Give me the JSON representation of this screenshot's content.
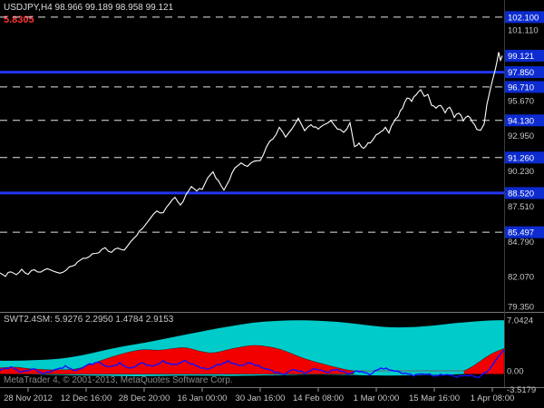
{
  "header": {
    "symbol_line": "USDJPY,H4 98.966 99.189 98.958 99.121",
    "red_value": "5.8305",
    "watermark": "MetaTrader 4, © 2001-2013, MetaQuotes Software Corp."
  },
  "colors": {
    "background": "#000000",
    "price_line": "#FFFFFF",
    "level_blue": "#2236F0",
    "label_bg_blue": "#0C2BD0",
    "dashed_line": "#E6E6E6",
    "axis_text": "#C6C6C6",
    "band_cyan": "#00CBCB",
    "area_red": "#F20000",
    "indicator_blue": "#0F0FFF",
    "red_text": "#FF3030",
    "header_text": "#DCDCDC",
    "subwindow_text": "#C8C8C8",
    "watermark_text": "#8A8A8A",
    "separator": "#787878"
  },
  "chart_data": {
    "type": "line",
    "title": "USDJPY,H4",
    "symbol": "USDJPY",
    "timeframe": "H4",
    "ohlc": {
      "open": 98.966,
      "high": 99.189,
      "low": 98.958,
      "close": 99.121
    },
    "price_pane": {
      "y_range": [
        79.35,
        103.0
      ],
      "current_price": 99.121,
      "grid": false,
      "axis_ticks": [
        {
          "label": "102.100",
          "price": 102.1,
          "highlighted": true
        },
        {
          "label": "101.110",
          "price": 101.11,
          "highlighted": false
        },
        {
          "label": "99.121",
          "price": 99.121,
          "highlighted": true,
          "current": true
        },
        {
          "label": "97.850",
          "price": 97.85,
          "highlighted": true
        },
        {
          "label": "96.710",
          "price": 96.71,
          "highlighted": true
        },
        {
          "label": "95.670",
          "price": 95.67,
          "highlighted": false
        },
        {
          "label": "94.130",
          "price": 94.13,
          "highlighted": true
        },
        {
          "label": "92.950",
          "price": 92.95,
          "highlighted": false
        },
        {
          "label": "91.260",
          "price": 91.26,
          "highlighted": true
        },
        {
          "label": "90.230",
          "price": 90.23,
          "highlighted": false
        },
        {
          "label": "88.520",
          "price": 88.52,
          "highlighted": true
        },
        {
          "label": "87.510",
          "price": 87.51,
          "highlighted": false
        },
        {
          "label": "85.497",
          "price": 85.497,
          "highlighted": true
        },
        {
          "label": "84.790",
          "price": 84.79,
          "highlighted": false
        },
        {
          "label": "82.070",
          "price": 82.07,
          "highlighted": false
        },
        {
          "label": "79.350",
          "price": 79.35,
          "highlighted": false
        }
      ],
      "hlines": [
        {
          "price": 102.1,
          "style": "dashed"
        },
        {
          "price": 97.85,
          "style": "solid"
        },
        {
          "price": 96.71,
          "style": "dashed"
        },
        {
          "price": 94.13,
          "style": "dashed"
        },
        {
          "price": 91.26,
          "style": "dashed"
        },
        {
          "price": 88.52,
          "style": "solid"
        },
        {
          "price": 85.497,
          "style": "dashed"
        }
      ],
      "series": [
        [
          0,
          82.35
        ],
        [
          6,
          82.15
        ],
        [
          12,
          82.45
        ],
        [
          18,
          82.25
        ],
        [
          24,
          82.55
        ],
        [
          31,
          82.3
        ],
        [
          38,
          82.6
        ],
        [
          45,
          82.4
        ],
        [
          52,
          82.7
        ],
        [
          59,
          82.5
        ],
        [
          66,
          82.3
        ],
        [
          73,
          82.6
        ],
        [
          80,
          82.9
        ],
        [
          88,
          83.3
        ],
        [
          95,
          83.55
        ],
        [
          102,
          83.75
        ],
        [
          109,
          84.0
        ],
        [
          116,
          84.25
        ],
        [
          123,
          83.95
        ],
        [
          130,
          84.3
        ],
        [
          137,
          84.1
        ],
        [
          144,
          84.75
        ],
        [
          151,
          85.3
        ],
        [
          159,
          85.95
        ],
        [
          166,
          86.6
        ],
        [
          173,
          87.15
        ],
        [
          180,
          86.95
        ],
        [
          187,
          87.8
        ],
        [
          193,
          88.15
        ],
        [
          199,
          87.6
        ],
        [
          205,
          88.3
        ],
        [
          211,
          89.05
        ],
        [
          217,
          88.7
        ],
        [
          223,
          88.85
        ],
        [
          229,
          89.7
        ],
        [
          235,
          90.1
        ],
        [
          241,
          89.45
        ],
        [
          247,
          88.7
        ],
        [
          253,
          89.6
        ],
        [
          259,
          90.45
        ],
        [
          266,
          90.85
        ],
        [
          273,
          90.55
        ],
        [
          280,
          91.05
        ],
        [
          287,
          90.95
        ],
        [
          294,
          92.15
        ],
        [
          301,
          92.7
        ],
        [
          308,
          93.55
        ],
        [
          315,
          92.9
        ],
        [
          322,
          93.45
        ],
        [
          329,
          94.3
        ],
        [
          336,
          93.35
        ],
        [
          343,
          93.8
        ],
        [
          351,
          93.45
        ],
        [
          358,
          93.85
        ],
        [
          365,
          94.05
        ],
        [
          372,
          93.55
        ],
        [
          379,
          93.15
        ],
        [
          386,
          93.95
        ],
        [
          391,
          92.05
        ],
        [
          396,
          92.4
        ],
        [
          401,
          91.9
        ],
        [
          406,
          92.35
        ],
        [
          411,
          92.6
        ],
        [
          415,
          92.95
        ],
        [
          420,
          93.25
        ],
        [
          425,
          93.6
        ],
        [
          429,
          93.15
        ],
        [
          434,
          94.05
        ],
        [
          439,
          94.45
        ],
        [
          444,
          95.1
        ],
        [
          449,
          95.95
        ],
        [
          454,
          95.6
        ],
        [
          459,
          96.15
        ],
        [
          464,
          96.55
        ],
        [
          468,
          95.9
        ],
        [
          472,
          96.1
        ],
        [
          476,
          95.35
        ],
        [
          481,
          95.05
        ],
        [
          486,
          95.35
        ],
        [
          491,
          94.75
        ],
        [
          496,
          95.15
        ],
        [
          501,
          94.45
        ],
        [
          506,
          94.7
        ],
        [
          511,
          94.15
        ],
        [
          516,
          94.55
        ],
        [
          521,
          94.0
        ],
        [
          526,
          93.5
        ],
        [
          530,
          93.35
        ],
        [
          534,
          93.75
        ],
        [
          537,
          95.4
        ],
        [
          540,
          96.3
        ],
        [
          543,
          97.2
        ],
        [
          546,
          97.95
        ],
        [
          548,
          98.6
        ],
        [
          550,
          99.35
        ],
        [
          552,
          98.85
        ],
        [
          554,
          99.12
        ]
      ]
    },
    "time_axis": {
      "first_tick_x": 31,
      "tick_spacing": 64,
      "labels": [
        "28 Nov 2012",
        "12 Dec 16:00",
        "28 Dec 20:00",
        "16 Jan 00:00",
        "30 Jan 16:00",
        "14 Feb 08:00",
        "1 Mar 00:00",
        "15 Mar 16:00",
        "1 Apr 08:00"
      ]
    },
    "indicator": {
      "name": "SWT2.4SM",
      "label": "SWT2.4SM: 5.9276 2.2950 1.4784 2.9153",
      "values": [
        "5.9276",
        "2.2950",
        "1.4784",
        "2.9153"
      ],
      "y_range": [
        -3.5179,
        7.0424
      ],
      "axis_labels": [
        {
          "text": "7.0424",
          "value": 7.0424
        },
        {
          "text": "0.00",
          "value": 0
        },
        {
          "text": "-3.5179",
          "value": -3.5179
        }
      ],
      "band_upper": [
        [
          0,
          1.4
        ],
        [
          20,
          1.4
        ],
        [
          40,
          1.5
        ],
        [
          60,
          1.6
        ],
        [
          80,
          1.9
        ],
        [
          100,
          2.4
        ],
        [
          120,
          3.0
        ],
        [
          140,
          3.5
        ],
        [
          160,
          3.9
        ],
        [
          180,
          4.4
        ],
        [
          200,
          4.9
        ],
        [
          220,
          5.4
        ],
        [
          240,
          5.9
        ],
        [
          260,
          6.3
        ],
        [
          280,
          6.7
        ],
        [
          300,
          6.9
        ],
        [
          320,
          7.0
        ],
        [
          340,
          7.0
        ],
        [
          360,
          6.9
        ],
        [
          380,
          6.7
        ],
        [
          400,
          6.4
        ],
        [
          420,
          6.1
        ],
        [
          440,
          6.0
        ],
        [
          460,
          6.1
        ],
        [
          480,
          6.3
        ],
        [
          500,
          6.6
        ],
        [
          520,
          6.8
        ],
        [
          540,
          7.0
        ],
        [
          556,
          7.0
        ]
      ],
      "band_lower": [
        [
          0,
          -0.4
        ],
        [
          20,
          -0.45
        ],
        [
          40,
          -0.5
        ],
        [
          60,
          -0.55
        ],
        [
          80,
          -0.6
        ],
        [
          100,
          -0.65
        ],
        [
          120,
          -0.7
        ],
        [
          140,
          -0.75
        ],
        [
          160,
          -0.75
        ],
        [
          180,
          -0.7
        ],
        [
          200,
          -0.65
        ],
        [
          220,
          -0.65
        ],
        [
          240,
          -0.7
        ],
        [
          260,
          -0.7
        ],
        [
          280,
          -0.65
        ],
        [
          300,
          -0.6
        ],
        [
          320,
          -0.55
        ],
        [
          340,
          -0.5
        ],
        [
          360,
          -0.5
        ],
        [
          380,
          -0.55
        ],
        [
          400,
          -0.6
        ],
        [
          420,
          -0.65
        ],
        [
          440,
          -0.65
        ],
        [
          460,
          -0.6
        ],
        [
          480,
          -0.55
        ],
        [
          500,
          -0.5
        ],
        [
          520,
          -0.4
        ],
        [
          540,
          -0.15
        ],
        [
          556,
          0.1
        ]
      ],
      "red_areas": [
        {
          "base": -0.45,
          "points": [
            [
              0,
              0.4
            ],
            [
              15,
              0.6
            ],
            [
              30,
              0.3
            ],
            [
              45,
              0.2
            ],
            [
              60,
              0.1
            ],
            [
              85,
              0.2
            ],
            [
              100,
              0.9
            ],
            [
              115,
              1.6
            ],
            [
              130,
              2.2
            ],
            [
              145,
              2.7
            ],
            [
              160,
              3.0
            ],
            [
              175,
              2.8
            ],
            [
              190,
              3.1
            ],
            [
              205,
              3.3
            ],
            [
              220,
              2.7
            ],
            [
              235,
              2.4
            ],
            [
              250,
              2.9
            ],
            [
              265,
              3.3
            ],
            [
              280,
              3.6
            ],
            [
              295,
              3.4
            ],
            [
              310,
              3.0
            ],
            [
              325,
              2.2
            ],
            [
              340,
              1.5
            ],
            [
              355,
              1.0
            ],
            [
              370,
              0.5
            ],
            [
              382,
              0.15
            ],
            [
              390,
              0.0
            ]
          ]
        },
        {
          "base": -0.45,
          "points": [
            [
              512,
              0.0
            ],
            [
              520,
              0.5
            ],
            [
              528,
              1.2
            ],
            [
              536,
              1.9
            ],
            [
              544,
              2.5
            ],
            [
              550,
              2.8
            ],
            [
              556,
              3.1
            ]
          ]
        }
      ],
      "blue_line": [
        [
          0,
          0.1
        ],
        [
          12,
          0.5
        ],
        [
          24,
          -0.2
        ],
        [
          36,
          0.3
        ],
        [
          48,
          -0.4
        ],
        [
          60,
          0.1
        ],
        [
          72,
          0.6
        ],
        [
          84,
          0.0
        ],
        [
          96,
          0.8
        ],
        [
          108,
          1.2
        ],
        [
          120,
          0.5
        ],
        [
          132,
          1.0
        ],
        [
          144,
          0.3
        ],
        [
          156,
          1.1
        ],
        [
          168,
          0.6
        ],
        [
          180,
          1.3
        ],
        [
          192,
          0.8
        ],
        [
          204,
          1.4
        ],
        [
          216,
          0.7
        ],
        [
          228,
          0.2
        ],
        [
          240,
          0.8
        ],
        [
          252,
          1.3
        ],
        [
          264,
          0.7
        ],
        [
          276,
          1.1
        ],
        [
          288,
          0.5
        ],
        [
          300,
          0.0
        ],
        [
          312,
          -0.5
        ],
        [
          324,
          0.2
        ],
        [
          336,
          -0.3
        ],
        [
          348,
          0.3
        ],
        [
          360,
          -0.2
        ],
        [
          372,
          0.2
        ],
        [
          384,
          -0.4
        ],
        [
          396,
          0.0
        ],
        [
          408,
          -0.5
        ],
        [
          420,
          0.4
        ],
        [
          432,
          0.1
        ],
        [
          444,
          -0.3
        ],
        [
          456,
          -0.6
        ],
        [
          468,
          -0.4
        ],
        [
          480,
          -0.7
        ],
        [
          492,
          -0.5
        ],
        [
          504,
          -0.8
        ],
        [
          516,
          -0.6
        ],
        [
          528,
          -0.9
        ],
        [
          540,
          0.2
        ],
        [
          548,
          1.7
        ],
        [
          556,
          2.92
        ]
      ]
    }
  }
}
